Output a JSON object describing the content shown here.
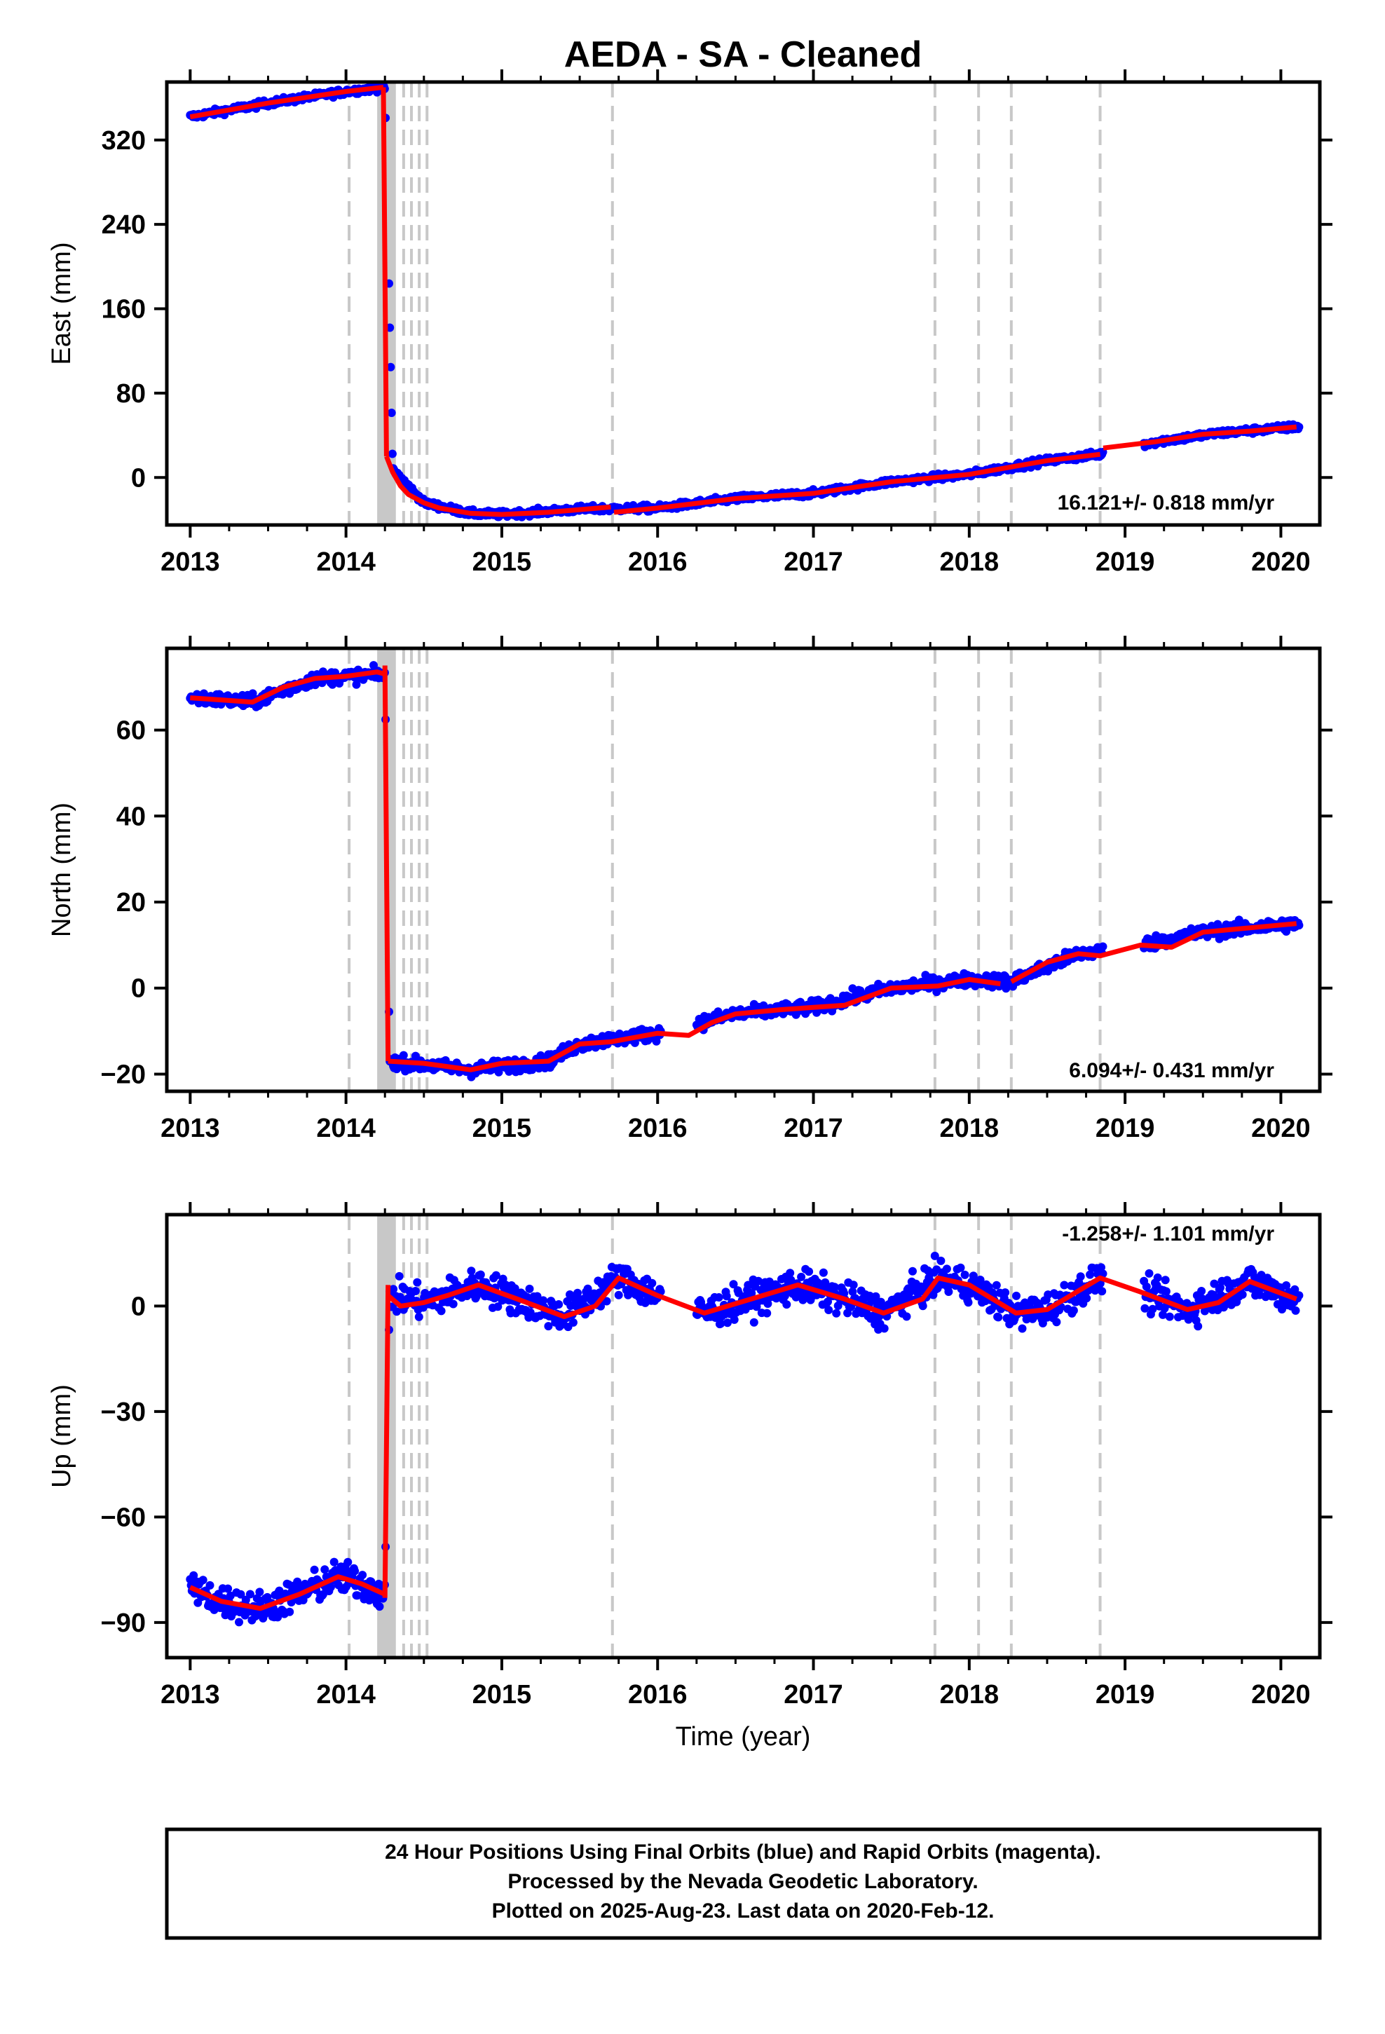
{
  "title": "AEDA  - SA - Cleaned",
  "xlabel": "Time (year)",
  "colors": {
    "points": "#0000ff",
    "fit": "#ff0000",
    "events": "#c8c8c8",
    "frame": "#000000"
  },
  "chart_data": [
    {
      "type": "scatter",
      "component": "East",
      "ylabel": "East (mm)",
      "rate_text": "16.121+/- 0.818 mm/yr",
      "xlim": [
        2012.85,
        2020.25
      ],
      "ylim": [
        -45,
        375
      ],
      "xticks": [
        "2013",
        "2014",
        "2015",
        "2016",
        "2017",
        "2018",
        "2019",
        "2020"
      ],
      "yticks": [
        "0",
        "80",
        "160",
        "240",
        "320"
      ],
      "event_lines": [
        2014.02,
        2014.37,
        2014.42,
        2014.47,
        2014.52,
        2015.71,
        2017.78,
        2018.06,
        2018.27,
        2018.84
      ],
      "event_band": [
        2014.2,
        2014.32
      ],
      "fit_segments": [
        {
          "x": [
            2013.0,
            2013.5,
            2014.0,
            2014.24
          ],
          "y": [
            342,
            355,
            366,
            370
          ]
        },
        {
          "x": [
            2014.24,
            2014.26
          ],
          "y": [
            370,
            20
          ]
        },
        {
          "x": [
            2014.26,
            2014.3,
            2014.35,
            2014.4,
            2014.5,
            2014.6,
            2014.8,
            2015.0,
            2015.3,
            2015.7
          ],
          "y": [
            20,
            5,
            -8,
            -16,
            -24,
            -29,
            -34,
            -35,
            -33,
            -28
          ]
        },
        {
          "x": [
            2015.72,
            2016.0,
            2016.5,
            2017.0,
            2017.5,
            2018.0,
            2018.5,
            2018.84
          ],
          "y": [
            -33,
            -29,
            -20,
            -15,
            -4,
            3,
            16,
            22
          ]
        },
        {
          "x": [
            2018.86,
            2019.2,
            2019.5,
            2019.8,
            2020.1
          ],
          "y": [
            28,
            34,
            41,
            44,
            48
          ]
        }
      ],
      "series_profile": {
        "x": [
          2013.0,
          2013.5,
          2014.0,
          2014.25,
          2014.3,
          2014.5,
          2014.8,
          2015.0,
          2015.5,
          2016.0,
          2016.5,
          2017.0,
          2017.5,
          2018.0,
          2018.5,
          2018.84,
          2019.2,
          2019.6,
          2020.1
        ],
        "y": [
          342,
          355,
          366,
          370,
          8,
          -24,
          -34,
          -35,
          -30,
          -29,
          -20,
          -15,
          -4,
          3,
          16,
          22,
          34,
          42,
          48
        ]
      },
      "gaps": [
        [
          2018.86,
          2019.12
        ]
      ]
    },
    {
      "type": "scatter",
      "component": "North",
      "ylabel": "North (mm)",
      "rate_text": "6.094+/- 0.431 mm/yr",
      "xlim": [
        2012.85,
        2020.25
      ],
      "ylim": [
        -24,
        79
      ],
      "xticks": [
        "2013",
        "2014",
        "2015",
        "2016",
        "2017",
        "2018",
        "2019",
        "2020"
      ],
      "yticks": [
        "-20",
        "0",
        "20",
        "40",
        "60"
      ],
      "event_lines": [
        2014.02,
        2014.37,
        2014.42,
        2014.47,
        2014.52,
        2015.71,
        2017.78,
        2018.06,
        2018.27,
        2018.84
      ],
      "event_band": [
        2014.2,
        2014.32
      ],
      "fit_segments": [
        {
          "x": [
            2013.0,
            2013.2,
            2013.4,
            2013.6,
            2013.8,
            2014.0,
            2014.2,
            2014.25
          ],
          "y": [
            67.5,
            67,
            66.5,
            70,
            72,
            72.5,
            73.5,
            73
          ]
        },
        {
          "x": [
            2014.25,
            2014.27
          ],
          "y": [
            75,
            -17
          ]
        },
        {
          "x": [
            2014.27,
            2014.5,
            2014.8,
            2015.0,
            2015.3,
            2015.5,
            2015.7,
            2016.0,
            2016.2,
            2016.35,
            2016.5,
            2016.8,
            2017.0,
            2017.2,
            2017.5,
            2017.8,
            2018.0,
            2018.2
          ],
          "y": [
            -17,
            -17.5,
            -19,
            -17.5,
            -17,
            -13,
            -12.5,
            -10.5,
            -11,
            -8,
            -6,
            -5,
            -4.5,
            -4,
            0,
            0.5,
            2,
            1
          ]
        },
        {
          "x": [
            2018.27,
            2018.5,
            2018.7,
            2018.84,
            2019.1,
            2019.3,
            2019.5,
            2019.8,
            2020.1
          ],
          "y": [
            1.5,
            6,
            8,
            7.5,
            10,
            9.5,
            13,
            14,
            15
          ]
        }
      ],
      "series_profile": {
        "x": [
          2013.0,
          2013.4,
          2013.8,
          2014.25,
          2014.28,
          2014.8,
          2015.3,
          2015.5,
          2016.0,
          2016.5,
          2017.0,
          2017.5,
          2018.0,
          2018.27,
          2018.7,
          2019.1,
          2019.5,
          2020.1
        ],
        "y": [
          67.5,
          66.5,
          72,
          73,
          -17,
          -19,
          -17,
          -13,
          -10.5,
          -6,
          -4.5,
          0,
          2,
          1.5,
          8,
          10,
          13,
          15
        ]
      },
      "gaps": [
        [
          2016.02,
          2016.25
        ],
        [
          2018.86,
          2019.12
        ]
      ]
    },
    {
      "type": "scatter",
      "component": "Up",
      "ylabel": "Up (mm)",
      "rate_text": "-1.258+/- 1.101 mm/yr",
      "xlim": [
        2012.85,
        2020.25
      ],
      "ylim": [
        -100,
        26
      ],
      "xticks": [
        "2013",
        "2014",
        "2015",
        "2016",
        "2017",
        "2018",
        "2019",
        "2020"
      ],
      "yticks": [
        "-90",
        "-60",
        "-30",
        "0"
      ],
      "event_lines": [
        2014.02,
        2014.37,
        2014.42,
        2014.47,
        2014.52,
        2015.71,
        2017.78,
        2018.06,
        2018.27,
        2018.84
      ],
      "event_band": [
        2014.2,
        2014.32
      ],
      "fit_segments": [
        {
          "x": [
            2013.0,
            2013.2,
            2013.45,
            2013.7,
            2013.95,
            2014.1,
            2014.25
          ],
          "y": [
            -80,
            -84,
            -86,
            -82,
            -77,
            -79,
            -82
          ]
        },
        {
          "x": [
            2014.25,
            2014.27
          ],
          "y": [
            -83,
            6
          ]
        },
        {
          "x": [
            2014.27,
            2014.35,
            2014.5,
            2014.65,
            2014.85,
            2015.1,
            2015.4,
            2015.6,
            2015.75,
            2016.0,
            2016.3,
            2016.6,
            2016.9,
            2017.2,
            2017.45,
            2017.7,
            2017.8,
            2018.0,
            2018.3,
            2018.5,
            2018.84,
            2019.1,
            2019.4,
            2019.6,
            2019.8,
            2020.1
          ],
          "y": [
            3,
            0,
            1,
            3,
            6,
            2,
            -3,
            0,
            8,
            3,
            -2,
            2,
            6,
            2,
            -2,
            2,
            8,
            6,
            -2,
            -1,
            8,
            4,
            -1,
            1,
            7,
            2
          ]
        }
      ],
      "series_profile": {
        "x": [
          2013.0,
          2013.2,
          2013.45,
          2013.7,
          2013.95,
          2014.1,
          2014.25,
          2014.28,
          2014.5,
          2014.85,
          2015.1,
          2015.4,
          2015.75,
          2016.0,
          2016.3,
          2016.6,
          2016.9,
          2017.2,
          2017.45,
          2017.8,
          2018.0,
          2018.3,
          2018.5,
          2018.84,
          2019.1,
          2019.4,
          2019.8,
          2020.1
        ],
        "y": [
          -80,
          -84,
          -86,
          -82,
          -77,
          -79,
          -82,
          3,
          1,
          6,
          2,
          -3,
          8,
          3,
          -2,
          2,
          6,
          2,
          -2,
          8,
          6,
          -2,
          -1,
          8,
          4,
          -1,
          7,
          2
        ]
      },
      "gaps": [
        [
          2016.02,
          2016.25
        ],
        [
          2018.86,
          2019.12
        ]
      ]
    }
  ],
  "caption": [
    "24 Hour Positions Using Final Orbits (blue) and Rapid Orbits (magenta).",
    "Processed by the Nevada Geodetic Laboratory.",
    "Plotted on 2025-Aug-23. Last data on 2020-Feb-12."
  ]
}
